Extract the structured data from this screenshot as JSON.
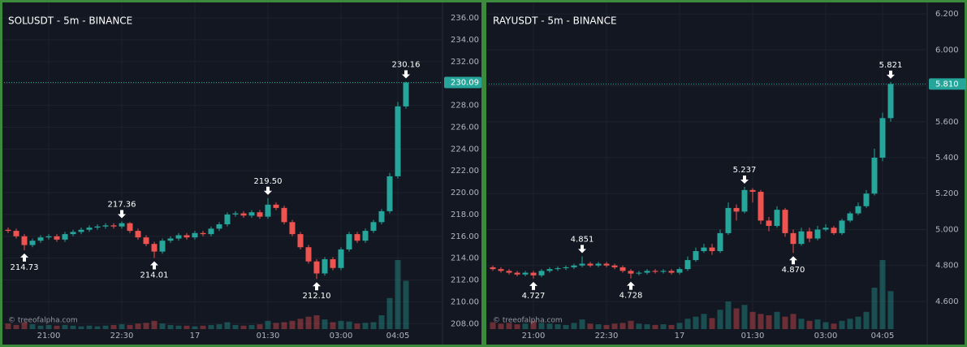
{
  "chart_data": [
    {
      "type": "candlestick",
      "title": "SOLUSDT - 5m - BINANCE",
      "watermark": "© treeofalpha.com",
      "up_color": "#26a69a",
      "down_color": "#ef5350",
      "categories": [
        null,
        null,
        null,
        null,
        null,
        "21:00",
        null,
        null,
        null,
        null,
        null,
        null,
        null,
        null,
        "22:30",
        null,
        null,
        null,
        null,
        null,
        null,
        null,
        null,
        "17",
        null,
        null,
        null,
        null,
        null,
        null,
        null,
        null,
        "01:30",
        null,
        null,
        null,
        null,
        null,
        null,
        null,
        null,
        "03:00",
        null,
        null,
        null,
        null,
        null,
        null,
        "04:05",
        null
      ],
      "open": [
        216.6,
        216.5,
        216.0,
        215.2,
        215.6,
        215.9,
        216.0,
        215.7,
        216.2,
        216.4,
        216.6,
        216.8,
        216.9,
        217.0,
        216.9,
        217.2,
        216.5,
        215.9,
        215.3,
        214.6,
        215.6,
        215.8,
        216.1,
        215.9,
        216.3,
        216.2,
        216.7,
        217.1,
        218.0,
        218.1,
        217.9,
        218.2,
        217.8,
        218.9,
        218.6,
        217.3,
        216.2,
        215.0,
        213.7,
        212.6,
        213.9,
        213.1,
        214.8,
        216.2,
        215.6,
        216.5,
        217.3,
        218.3,
        221.5,
        227.9
      ],
      "high": [
        216.8,
        216.7,
        216.2,
        215.8,
        216.1,
        216.2,
        216.2,
        216.4,
        216.6,
        216.8,
        217.0,
        217.1,
        217.2,
        217.2,
        217.36,
        217.3,
        216.7,
        216.1,
        215.5,
        215.8,
        216.0,
        216.3,
        216.3,
        216.5,
        216.5,
        216.9,
        217.3,
        218.2,
        218.3,
        218.3,
        218.4,
        218.4,
        219.5,
        219.1,
        218.8,
        217.5,
        216.4,
        215.2,
        213.9,
        214.1,
        214.1,
        215.0,
        216.4,
        216.4,
        216.7,
        217.5,
        218.5,
        221.8,
        228.3,
        230.16
      ],
      "low": [
        216.3,
        215.8,
        214.73,
        215.0,
        215.4,
        215.7,
        215.5,
        215.5,
        216.0,
        216.2,
        216.4,
        216.6,
        216.7,
        216.7,
        216.7,
        216.3,
        215.7,
        215.1,
        214.01,
        214.4,
        215.4,
        215.6,
        215.7,
        215.7,
        216.0,
        216.0,
        216.5,
        216.9,
        217.8,
        217.7,
        217.7,
        217.6,
        217.6,
        218.4,
        217.1,
        216.0,
        214.8,
        213.5,
        212.1,
        212.4,
        212.9,
        212.9,
        214.6,
        215.4,
        215.4,
        216.3,
        217.1,
        218.1,
        221.3,
        227.7
      ],
      "close": [
        216.5,
        216.0,
        215.2,
        215.6,
        215.9,
        216.0,
        215.7,
        216.2,
        216.4,
        216.6,
        216.8,
        216.9,
        217.0,
        216.9,
        217.2,
        216.5,
        215.9,
        215.3,
        214.6,
        215.6,
        215.8,
        216.1,
        215.9,
        216.3,
        216.2,
        216.7,
        217.1,
        218.0,
        218.1,
        217.9,
        218.2,
        217.8,
        218.9,
        218.6,
        217.3,
        216.2,
        215.0,
        213.7,
        212.6,
        213.9,
        213.1,
        214.8,
        216.2,
        215.6,
        216.5,
        217.3,
        218.3,
        221.5,
        227.9,
        230.09
      ],
      "volume": [
        8,
        6,
        10,
        7,
        5,
        6,
        5,
        6,
        5,
        4,
        5,
        4,
        5,
        6,
        7,
        6,
        8,
        9,
        12,
        8,
        6,
        5,
        5,
        4,
        5,
        6,
        7,
        10,
        6,
        5,
        6,
        7,
        12,
        9,
        10,
        12,
        15,
        18,
        20,
        14,
        10,
        12,
        11,
        8,
        9,
        10,
        20,
        45,
        100,
        70
      ],
      "high_labels": [
        null,
        null,
        null,
        null,
        null,
        null,
        null,
        null,
        null,
        null,
        null,
        null,
        null,
        null,
        "217.36",
        null,
        null,
        null,
        null,
        null,
        null,
        null,
        null,
        null,
        null,
        null,
        null,
        null,
        null,
        null,
        null,
        null,
        "219.50",
        null,
        null,
        null,
        null,
        null,
        null,
        null,
        null,
        null,
        null,
        null,
        null,
        null,
        null,
        null,
        null,
        "230.16"
      ],
      "low_labels": [
        null,
        null,
        "214.73",
        null,
        null,
        null,
        null,
        null,
        null,
        null,
        null,
        null,
        null,
        null,
        null,
        null,
        null,
        null,
        "214.01",
        null,
        null,
        null,
        null,
        null,
        null,
        null,
        null,
        null,
        null,
        null,
        null,
        null,
        null,
        null,
        null,
        null,
        null,
        null,
        "212.10",
        null,
        null,
        null,
        null,
        null,
        null,
        null,
        null,
        null,
        null,
        null
      ],
      "last_price": {
        "value": 230.09,
        "label": "230.09"
      },
      "ylim": [
        207.5,
        236.9
      ],
      "yticks": [
        {
          "value": 208,
          "label": "208.00"
        },
        {
          "value": 210,
          "label": "210.00"
        },
        {
          "value": 212,
          "label": "212.00"
        },
        {
          "value": 214,
          "label": "214.00"
        },
        {
          "value": 216,
          "label": "216.00"
        },
        {
          "value": 218,
          "label": "218.00"
        },
        {
          "value": 220,
          "label": "220.00"
        },
        {
          "value": 222,
          "label": "222.00"
        },
        {
          "value": 224,
          "label": "224.00"
        },
        {
          "value": 226,
          "label": "226.00"
        },
        {
          "value": 228,
          "label": "228.00"
        },
        {
          "value": 230,
          "label": "230.00"
        },
        {
          "value": 232,
          "label": "232.00"
        },
        {
          "value": 234,
          "label": "234.00"
        },
        {
          "value": 236,
          "label": "236.00"
        }
      ]
    },
    {
      "type": "candlestick",
      "title": "RAYUSDT - 5m - BINANCE",
      "watermark": "© treeofalpha.com",
      "up_color": "#26a69a",
      "down_color": "#ef5350",
      "categories": [
        null,
        null,
        null,
        null,
        null,
        "21:00",
        null,
        null,
        null,
        null,
        null,
        null,
        null,
        null,
        "22:30",
        null,
        null,
        null,
        null,
        null,
        null,
        null,
        null,
        "17",
        null,
        null,
        null,
        null,
        null,
        null,
        null,
        null,
        "01:30",
        null,
        null,
        null,
        null,
        null,
        null,
        null,
        null,
        "03:00",
        null,
        null,
        null,
        null,
        null,
        null,
        "04:05",
        null
      ],
      "open": [
        4.79,
        4.78,
        4.77,
        4.76,
        4.75,
        4.76,
        4.745,
        4.77,
        4.78,
        4.785,
        4.79,
        4.8,
        4.81,
        4.8,
        4.81,
        4.8,
        4.79,
        4.77,
        4.755,
        4.76,
        4.77,
        4.765,
        4.77,
        4.76,
        4.78,
        4.83,
        4.88,
        4.9,
        4.88,
        4.98,
        5.12,
        5.1,
        5.22,
        5.21,
        5.05,
        5.02,
        5.11,
        4.98,
        4.92,
        4.99,
        4.95,
        5.0,
        5.01,
        4.98,
        5.05,
        5.09,
        5.13,
        5.2,
        5.4,
        5.62
      ],
      "high": [
        4.8,
        4.79,
        4.78,
        4.77,
        4.77,
        4.77,
        4.78,
        4.79,
        4.795,
        4.8,
        4.81,
        4.851,
        4.82,
        4.82,
        4.82,
        4.81,
        4.8,
        4.78,
        4.77,
        4.78,
        4.78,
        4.78,
        4.78,
        4.79,
        4.85,
        4.9,
        4.92,
        4.92,
        5.0,
        5.15,
        5.14,
        5.237,
        5.23,
        5.22,
        5.07,
        5.13,
        5.12,
        5.0,
        5.01,
        5.01,
        5.02,
        5.03,
        5.02,
        5.06,
        5.1,
        5.15,
        5.22,
        5.45,
        5.65,
        5.821
      ],
      "low": [
        4.77,
        4.76,
        4.75,
        4.74,
        4.74,
        4.727,
        4.735,
        4.76,
        4.77,
        4.775,
        4.78,
        4.79,
        4.79,
        4.79,
        4.79,
        4.78,
        4.76,
        4.728,
        4.745,
        4.75,
        4.755,
        4.755,
        4.75,
        4.75,
        4.77,
        4.82,
        4.87,
        4.86,
        4.87,
        4.97,
        5.05,
        5.09,
        5.15,
        5.03,
        4.99,
        5.01,
        4.96,
        4.87,
        4.91,
        4.93,
        4.94,
        4.99,
        4.97,
        4.97,
        5.04,
        5.08,
        5.12,
        5.19,
        5.38,
        5.6
      ],
      "close": [
        4.78,
        4.77,
        4.76,
        4.75,
        4.76,
        4.745,
        4.77,
        4.78,
        4.785,
        4.79,
        4.8,
        4.81,
        4.8,
        4.81,
        4.8,
        4.79,
        4.77,
        4.755,
        4.76,
        4.77,
        4.765,
        4.77,
        4.76,
        4.78,
        4.83,
        4.88,
        4.9,
        4.88,
        4.98,
        5.12,
        5.1,
        5.22,
        5.21,
        5.05,
        5.02,
        5.11,
        4.98,
        4.92,
        4.99,
        4.95,
        5.0,
        5.01,
        4.98,
        5.05,
        5.09,
        5.13,
        5.2,
        5.4,
        5.62,
        5.81
      ],
      "volume": [
        10,
        8,
        9,
        7,
        8,
        12,
        9,
        8,
        7,
        6,
        9,
        14,
        8,
        7,
        6,
        8,
        9,
        12,
        8,
        7,
        6,
        7,
        6,
        9,
        15,
        18,
        22,
        16,
        28,
        40,
        30,
        35,
        25,
        22,
        20,
        25,
        18,
        22,
        15,
        12,
        14,
        10,
        8,
        12,
        15,
        18,
        25,
        60,
        100,
        55
      ],
      "high_labels": [
        null,
        null,
        null,
        null,
        null,
        null,
        null,
        null,
        null,
        null,
        null,
        "4.851",
        null,
        null,
        null,
        null,
        null,
        null,
        null,
        null,
        null,
        null,
        null,
        null,
        null,
        null,
        null,
        null,
        null,
        null,
        null,
        "5.237",
        null,
        null,
        null,
        null,
        null,
        null,
        null,
        null,
        null,
        null,
        null,
        null,
        null,
        null,
        null,
        null,
        null,
        "5.821"
      ],
      "low_labels": [
        null,
        null,
        null,
        null,
        null,
        "4.727",
        null,
        null,
        null,
        null,
        null,
        null,
        null,
        null,
        null,
        null,
        null,
        "4.728",
        null,
        null,
        null,
        null,
        null,
        null,
        null,
        null,
        null,
        null,
        null,
        null,
        null,
        null,
        null,
        null,
        null,
        null,
        null,
        "4.870",
        null,
        null,
        null,
        null,
        null,
        null,
        null,
        null,
        null,
        null,
        null,
        null
      ],
      "last_price": {
        "value": 5.81,
        "label": "5.810"
      },
      "ylim": [
        4.446,
        6.232
      ],
      "yticks": [
        {
          "value": 4.6,
          "label": "4.600"
        },
        {
          "value": 4.8,
          "label": "4.800"
        },
        {
          "value": 5.0,
          "label": "5.000"
        },
        {
          "value": 5.2,
          "label": "5.200"
        },
        {
          "value": 5.4,
          "label": "5.400"
        },
        {
          "value": 5.6,
          "label": "5.600"
        },
        {
          "value": 5.8,
          "label": "5.800"
        },
        {
          "value": 6.0,
          "label": "6.000"
        },
        {
          "value": 6.2,
          "label": "6.200"
        }
      ]
    }
  ]
}
